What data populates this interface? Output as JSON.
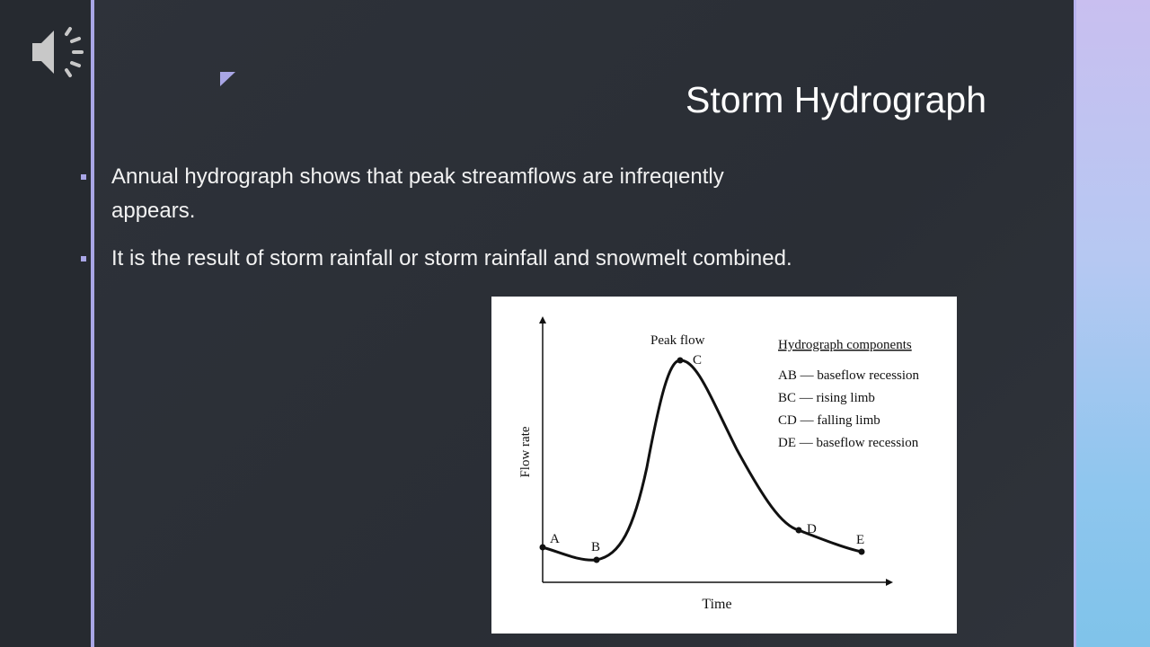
{
  "slide": {
    "title": "Storm Hydrograph",
    "bullets": [
      "Annual hydrograph shows that peak streamflows are infreqιently appears.",
      "It is the result of storm rainfall or storm rainfall and snowmelt combined."
    ]
  },
  "figure": {
    "peak_label": "Peak flow",
    "legend_title": "Hydrograph components",
    "legend_items": [
      "AB — baseflow recession",
      "BC — rising limb",
      "CD — falling limb",
      "DE — baseflow recession"
    ],
    "y_axis_label": "Flow rate",
    "x_axis_label": "Time",
    "points": [
      "A",
      "B",
      "C",
      "D",
      "E"
    ]
  }
}
